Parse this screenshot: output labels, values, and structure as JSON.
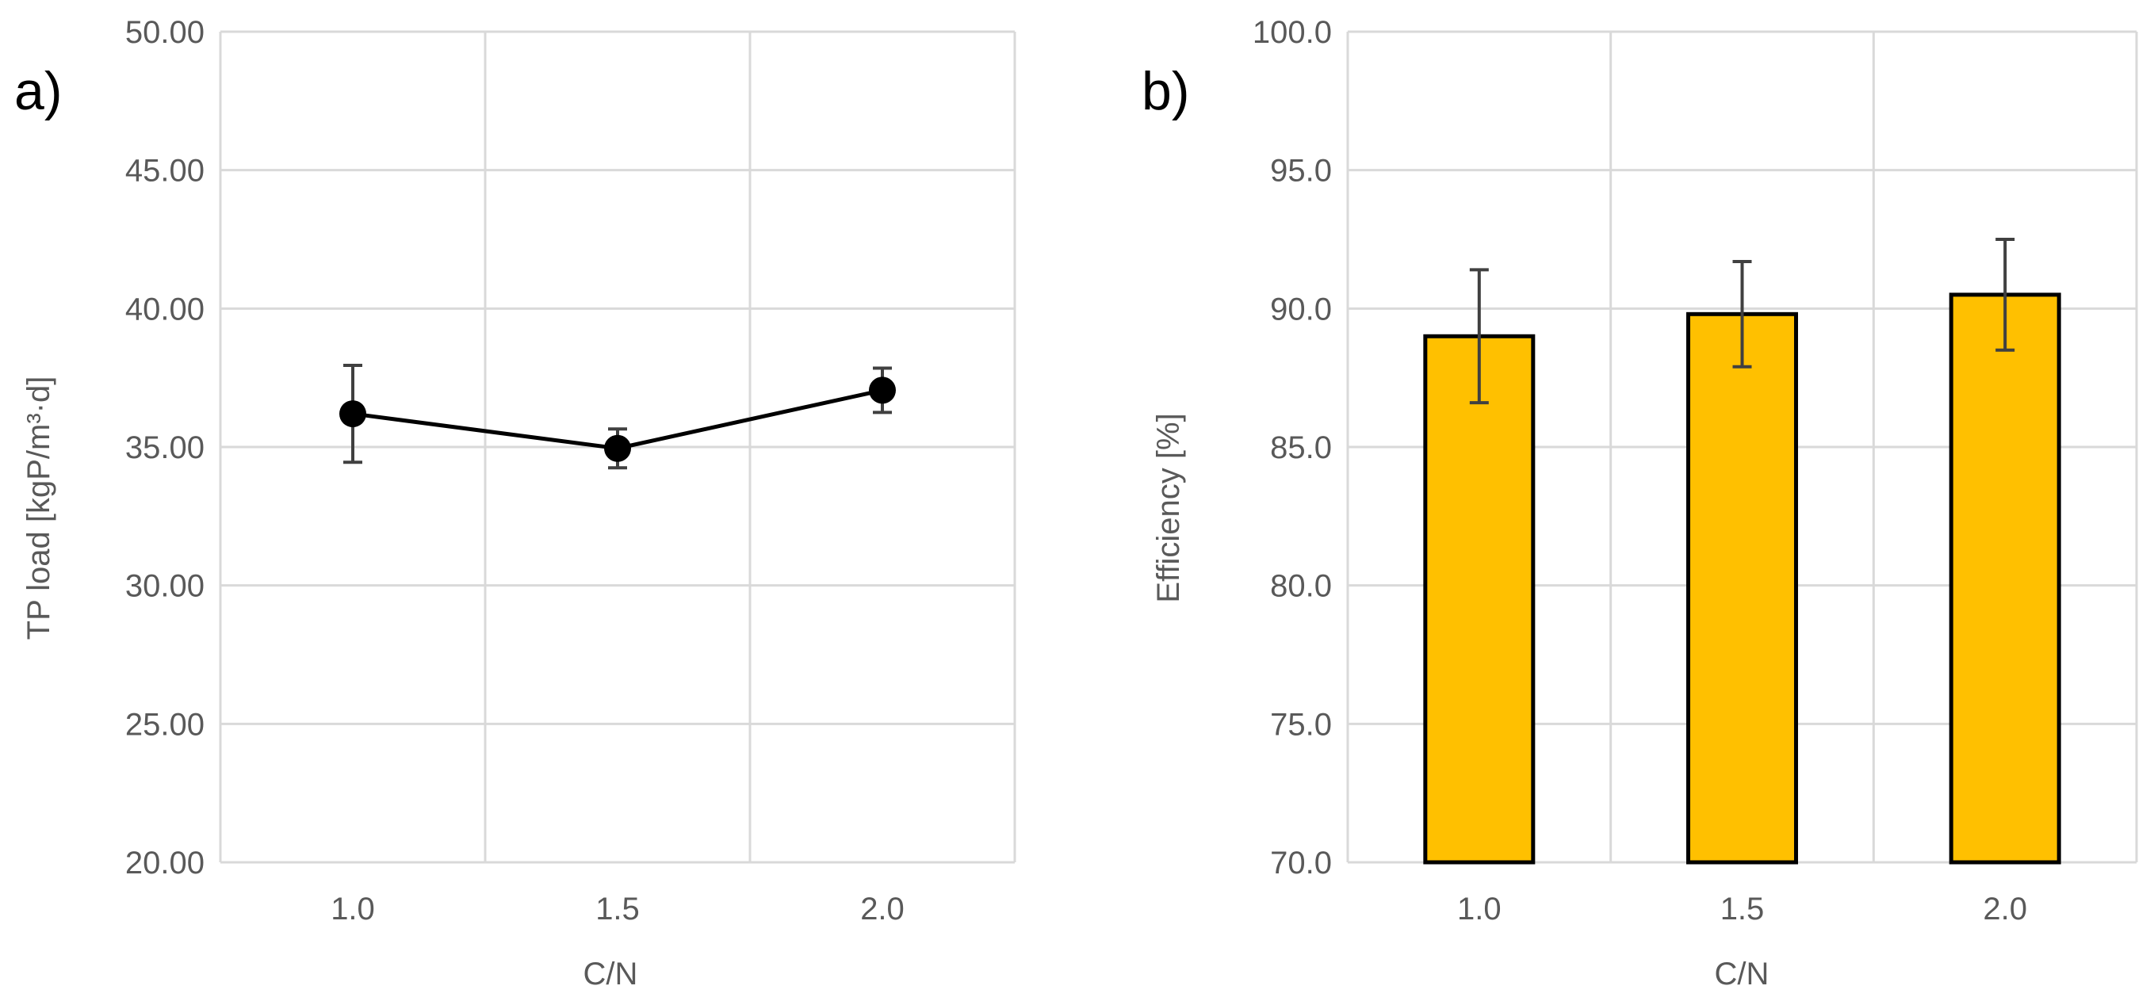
{
  "panels": [
    {
      "label": "a)"
    },
    {
      "label": "b)"
    }
  ],
  "colors": {
    "grid": "#d9d9d9",
    "axis_text": "#595959",
    "line": "#000000",
    "marker": "#000000",
    "bar_fill": "#ffc000",
    "bar_edge": "#000000",
    "error_bar": "#404040"
  },
  "chart_data": [
    {
      "type": "line",
      "panel": "a)",
      "title": "",
      "xlabel": "C/N",
      "ylabel": "TP load [kgP/m³·d]",
      "categories": [
        "1.0",
        "1.5",
        "2.0"
      ],
      "y_ticks": [
        "20.00",
        "25.00",
        "30.00",
        "35.00",
        "40.00",
        "45.00",
        "50.00"
      ],
      "ylim": [
        20,
        50
      ],
      "grid": true,
      "series": [
        {
          "values": [
            36.2,
            34.95,
            37.05
          ],
          "errors": [
            1.75,
            0.7,
            0.8
          ]
        }
      ]
    },
    {
      "type": "bar",
      "panel": "b)",
      "title": "",
      "xlabel": "C/N",
      "ylabel": "Efficiency [%]",
      "categories": [
        "1.0",
        "1.5",
        "2.0"
      ],
      "y_ticks": [
        "70.0",
        "75.0",
        "80.0",
        "85.0",
        "90.0",
        "95.0",
        "100.0"
      ],
      "ylim": [
        70,
        100
      ],
      "grid": true,
      "series": [
        {
          "values": [
            89.0,
            89.8,
            90.5
          ],
          "errors": [
            2.4,
            1.9,
            2.0
          ]
        }
      ]
    }
  ]
}
